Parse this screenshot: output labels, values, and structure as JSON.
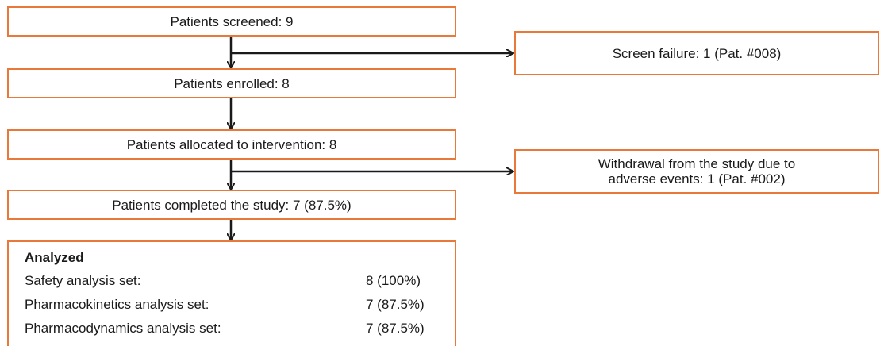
{
  "flow": {
    "screened": "Patients screened: 9",
    "screen_failure": "Screen failure: 1 (Pat. #008)",
    "enrolled": "Patients enrolled: 8",
    "allocated": "Patients allocated to intervention: 8",
    "withdrawal_line1": "Withdrawal from the study due to",
    "withdrawal_line2": "adverse events: 1 (Pat. #002)",
    "completed": "Patients completed the study: 7 (87.5%)"
  },
  "analyzed": {
    "title": "Analyzed",
    "rows": [
      {
        "label": "Safety analysis set:",
        "value": "8 (100%)"
      },
      {
        "label": "Pharmacokinetics analysis set:",
        "value": "7 (87.5%)"
      },
      {
        "label": "Pharmacodynamics analysis set:",
        "value": "7 (87.5%)"
      }
    ]
  },
  "colors": {
    "box_border": "#e8793a",
    "arrow": "#1a1a1a"
  }
}
